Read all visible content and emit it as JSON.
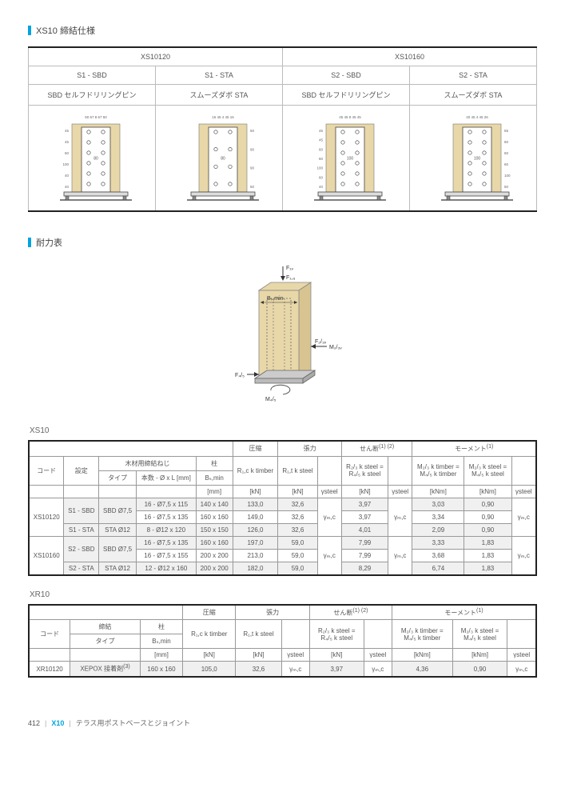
{
  "section1": {
    "title": "XS10 締結仕様"
  },
  "spec": {
    "group1": "XS10120",
    "group2": "XS10160",
    "cols": [
      {
        "code": "S1 - SBD",
        "desc": "SBD セルフドリリングピン",
        "top_dims": "50 67 8 67 50",
        "side_dims": [
          "45",
          "45",
          "60",
          "100",
          "40",
          "40"
        ],
        "beam_w": 80,
        "wood": "#e8d7a8"
      },
      {
        "code": "S1 - STA",
        "desc": "スムーズダボ STA",
        "top_dims": "16 45 4 45 16",
        "side_dims": [
          "50",
          "90",
          "90",
          "50"
        ],
        "beam_w": 80,
        "wood": "#e8d7a8"
      },
      {
        "code": "S2 - SBD",
        "desc": "SBD セルフドリリングピン",
        "top_dims": "45  45 8 45  45",
        "side_dims": [
          "45",
          "45",
          "60",
          "60",
          "100",
          "60",
          "40"
        ],
        "beam_w": 100,
        "wood": "#e8d7a8"
      },
      {
        "code": "S2 - STA",
        "desc": "スムーズダボ STA",
        "top_dims": "40  45 4 45  26",
        "side_dims": [
          "55",
          "60",
          "60",
          "60",
          "100",
          "50"
        ],
        "beam_w": 100,
        "wood": "#e8d7a8"
      }
    ]
  },
  "section2": {
    "title": "耐力表"
  },
  "loadfig": {
    "labels": {
      "F1v": "F₁ᵥ",
      "F1u": "F₁,ᵤ",
      "Bsmin": "Bₛ,min",
      "F23v": "F₂/₃ᵥ",
      "M23v": "M₂/₃ᵥ",
      "F45": "F₄/₅",
      "M45": "M₄/₅"
    },
    "wood": "#e8d7a8",
    "steel": "#bbbbbb"
  },
  "xs10": {
    "label": "XS10",
    "header": {
      "comp": "圧縮",
      "tens": "張力",
      "shear": "せん断",
      "shear_sup": "(1) (2)",
      "moment": "モーメント",
      "moment_sup": "(1)"
    },
    "subheader": {
      "code": "コード",
      "config": "設定",
      "fasten": "木材用締結ねじ",
      "col": "柱",
      "R1c": "R₁,c k timber",
      "R1t": "R₁,t k steel",
      "R23": "R₂/₃ k steel =\nR₄/₅ k steel",
      "M23a": "M₂/₃ k timber =\nM₄/₅ k timber",
      "M23b": "M₂/₃ k steel =\nM₄/₅ k steel",
      "type": "タイプ",
      "count": "本数 - Ø x L [mm]",
      "Bsmin": "Bₛ,min",
      "mm": "[mm]",
      "kN": "[kN]",
      "kNm": "[kNm]",
      "ysteel": "γsteel",
      "ymc": "γₘ,c"
    },
    "rows": [
      {
        "code": "XS10120",
        "cfg": "S1 - SBD",
        "type": "SBD Ø7,5",
        "cnt": "16 - Ø7,5 x 115",
        "bs": "140 x 140",
        "rc": "133,0",
        "rt": "32,6",
        "rty": "",
        "s": "3,97",
        "sy": "",
        "m1": "3,03",
        "m2": "0,90",
        "my": "",
        "grey": true
      },
      {
        "code": "",
        "cfg": "",
        "type": "",
        "cnt": "16 - Ø7,5 x 135",
        "bs": "160 x 160",
        "rc": "149,0",
        "rt": "32,6",
        "rty": "γₘ,c",
        "s": "3,97",
        "sy": "γₘ,c",
        "m1": "3,34",
        "m2": "0,90",
        "my": "γₘ,c",
        "grey": false
      },
      {
        "code": "",
        "cfg": "S1 - STA",
        "type": "STA Ø12",
        "cnt": "8 - Ø12 x 120",
        "bs": "150 x 150",
        "rc": "126,0",
        "rt": "32,6",
        "rty": "",
        "s": "4,01",
        "sy": "",
        "m1": "2,09",
        "m2": "0,90",
        "my": "",
        "grey": true
      },
      {
        "code": "XS10160",
        "cfg": "S2 - SBD",
        "type": "SBD Ø7,5",
        "cnt": "16 - Ø7,5 x 135",
        "bs": "160 x 160",
        "rc": "197,0",
        "rt": "59,0",
        "rty": "",
        "s": "7,99",
        "sy": "",
        "m1": "3,33",
        "m2": "1,83",
        "my": "",
        "grey": true
      },
      {
        "code": "",
        "cfg": "",
        "type": "",
        "cnt": "16 - Ø7,5 x 155",
        "bs": "200 x 200",
        "rc": "213,0",
        "rt": "59,0",
        "rty": "γₘ,c",
        "s": "7,99",
        "sy": "γₘ,c",
        "m1": "3,68",
        "m2": "1,83",
        "my": "γₘ,c",
        "grey": false
      },
      {
        "code": "",
        "cfg": "S2 - STA",
        "type": "STA Ø12",
        "cnt": "12 - Ø12 x 160",
        "bs": "200 x 200",
        "rc": "182,0",
        "rt": "59,0",
        "rty": "",
        "s": "8,29",
        "sy": "",
        "m1": "6,74",
        "m2": "1,83",
        "my": "",
        "grey": true
      }
    ]
  },
  "xr10": {
    "label": "XR10",
    "subheader": {
      "fasten": "締結",
      "xepox": "XEPOX 接着剤",
      "xepox_sup": "(3)"
    },
    "row": {
      "code": "XR10120",
      "bs": "160 x 160",
      "rc": "105,0",
      "rt": "32,6",
      "rty": "γₘ,c",
      "s": "3,97",
      "sy": "γₘ,c",
      "m1": "4,36",
      "m2": "0,90",
      "my": "γₘ,c"
    }
  },
  "footer": {
    "page": "412",
    "code": "X10",
    "desc": "テラス用ポストベースとジョイント"
  },
  "colors": {
    "accent": "#00a4de",
    "border_dark": "#222222",
    "border": "#999999",
    "wood": "#e8d7a8",
    "grey_row": "#f0f0f0"
  }
}
